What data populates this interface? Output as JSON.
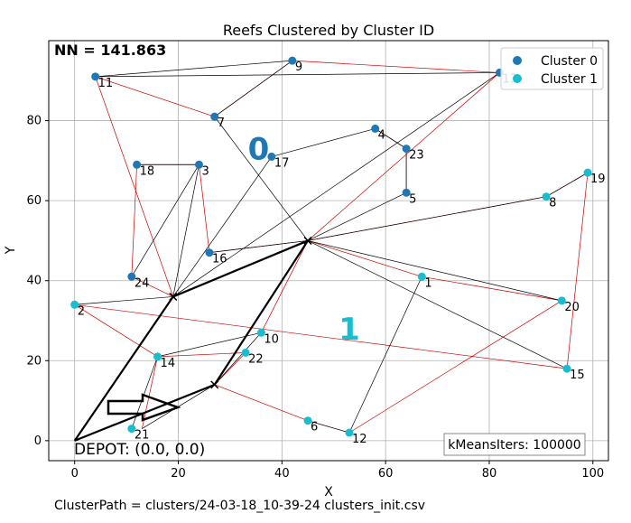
{
  "chart_data": {
    "type": "scatter",
    "title": "Reefs Clustered by Cluster ID",
    "xlabel": "X",
    "ylabel": "Y",
    "xlim": [
      -5,
      103
    ],
    "ylim": [
      -5,
      100
    ],
    "xticks": [
      0,
      20,
      40,
      60,
      80,
      100
    ],
    "yticks": [
      0,
      20,
      40,
      60,
      80
    ],
    "grid": true,
    "legend_position": "top-right",
    "series": [
      {
        "name": "Cluster 0",
        "color": "#1f77b4",
        "points": [
          {
            "id": "3",
            "x": 24,
            "y": 69
          },
          {
            "id": "4",
            "x": 58,
            "y": 78
          },
          {
            "id": "5",
            "x": 64,
            "y": 62
          },
          {
            "id": "7",
            "x": 27,
            "y": 81
          },
          {
            "id": "9",
            "x": 42,
            "y": 95
          },
          {
            "id": "11",
            "x": 4,
            "y": 91
          },
          {
            "id": "13",
            "x": 82,
            "y": 92
          },
          {
            "id": "16",
            "x": 26,
            "y": 47
          },
          {
            "id": "17",
            "x": 38,
            "y": 71
          },
          {
            "id": "18",
            "x": 12,
            "y": 69
          },
          {
            "id": "23",
            "x": 64,
            "y": 73
          },
          {
            "id": "24",
            "x": 11,
            "y": 41
          }
        ]
      },
      {
        "name": "Cluster 1",
        "color": "#17becf",
        "points": [
          {
            "id": "1",
            "x": 67,
            "y": 41
          },
          {
            "id": "2",
            "x": 0,
            "y": 34
          },
          {
            "id": "6",
            "x": 45,
            "y": 5
          },
          {
            "id": "8",
            "x": 91,
            "y": 61
          },
          {
            "id": "10",
            "x": 36,
            "y": 27
          },
          {
            "id": "12",
            "x": 53,
            "y": 2
          },
          {
            "id": "14",
            "x": 16,
            "y": 21
          },
          {
            "id": "15",
            "x": 95,
            "y": 18
          },
          {
            "id": "19",
            "x": 99,
            "y": 67
          },
          {
            "id": "20",
            "x": 94,
            "y": 35
          },
          {
            "id": "21",
            "x": 11,
            "y": 3
          },
          {
            "id": "22",
            "x": 33,
            "y": 22
          }
        ]
      }
    ],
    "centroids": [
      {
        "label": "0",
        "x": 35.5,
        "y": 73,
        "color": "#1f77b4"
      },
      {
        "label": "1",
        "x": 53,
        "y": 28,
        "color": "#17becf"
      }
    ],
    "depot_route": [
      [
        0,
        0
      ],
      [
        19,
        36
      ],
      [
        45,
        50
      ],
      [
        27,
        14
      ],
      [
        0,
        0
      ]
    ],
    "depot_marks": [
      [
        19,
        36
      ],
      [
        45,
        50
      ],
      [
        27,
        14
      ]
    ],
    "black_edges": [
      [
        [
          4,
          91
        ],
        [
          42,
          95
        ]
      ],
      [
        [
          4,
          91
        ],
        [
          82,
          92
        ]
      ],
      [
        [
          42,
          95
        ],
        [
          27,
          81
        ]
      ],
      [
        [
          27,
          81
        ],
        [
          45,
          50
        ]
      ],
      [
        [
          82,
          92
        ],
        [
          19,
          36
        ]
      ],
      [
        [
          45,
          50
        ],
        [
          64,
          62
        ]
      ],
      [
        [
          64,
          62
        ],
        [
          64,
          73
        ]
      ],
      [
        [
          64,
          73
        ],
        [
          58,
          78
        ]
      ],
      [
        [
          58,
          78
        ],
        [
          38,
          71
        ]
      ],
      [
        [
          38,
          71
        ],
        [
          19,
          36
        ]
      ],
      [
        [
          19,
          36
        ],
        [
          24,
          69
        ]
      ],
      [
        [
          24,
          69
        ],
        [
          11,
          41
        ]
      ],
      [
        [
          12,
          69
        ],
        [
          24,
          69
        ]
      ],
      [
        [
          45,
          50
        ],
        [
          26,
          47
        ]
      ],
      [
        [
          19,
          36
        ],
        [
          0,
          34
        ]
      ],
      [
        [
          45,
          50
        ],
        [
          91,
          61
        ]
      ],
      [
        [
          91,
          61
        ],
        [
          99,
          67
        ]
      ],
      [
        [
          45,
          50
        ],
        [
          94,
          35
        ]
      ],
      [
        [
          45,
          50
        ],
        [
          95,
          18
        ]
      ],
      [
        [
          67,
          41
        ],
        [
          53,
          2
        ]
      ],
      [
        [
          53,
          2
        ],
        [
          45,
          5
        ]
      ],
      [
        [
          27,
          14
        ],
        [
          36,
          27
        ]
      ],
      [
        [
          36,
          27
        ],
        [
          16,
          21
        ]
      ],
      [
        [
          16,
          21
        ],
        [
          11,
          3
        ]
      ],
      [
        [
          27,
          14
        ],
        [
          13,
          3
        ]
      ]
    ],
    "red_edges": [
      [
        [
          4,
          91
        ],
        [
          19,
          36
        ]
      ],
      [
        [
          4,
          91
        ],
        [
          27,
          81
        ]
      ],
      [
        [
          27,
          81
        ],
        [
          42,
          95
        ]
      ],
      [
        [
          42,
          95
        ],
        [
          82,
          92
        ]
      ],
      [
        [
          82,
          92
        ],
        [
          45,
          50
        ]
      ],
      [
        [
          64,
          73
        ],
        [
          58,
          78
        ]
      ],
      [
        [
          64,
          73
        ],
        [
          64,
          62
        ]
      ],
      [
        [
          12,
          69
        ],
        [
          24,
          69
        ]
      ],
      [
        [
          12,
          69
        ],
        [
          11,
          41
        ]
      ],
      [
        [
          11,
          41
        ],
        [
          19,
          36
        ]
      ],
      [
        [
          24,
          69
        ],
        [
          26,
          47
        ]
      ],
      [
        [
          26,
          47
        ],
        [
          45,
          50
        ]
      ],
      [
        [
          45,
          50
        ],
        [
          91,
          61
        ]
      ],
      [
        [
          99,
          67
        ],
        [
          91,
          61
        ]
      ],
      [
        [
          99,
          67
        ],
        [
          95,
          18
        ]
      ],
      [
        [
          45,
          50
        ],
        [
          67,
          41
        ]
      ],
      [
        [
          67,
          41
        ],
        [
          94,
          35
        ]
      ],
      [
        [
          94,
          35
        ],
        [
          53,
          2
        ]
      ],
      [
        [
          0,
          34
        ],
        [
          95,
          18
        ]
      ],
      [
        [
          0,
          34
        ],
        [
          16,
          21
        ]
      ],
      [
        [
          16,
          21
        ],
        [
          33,
          22
        ]
      ],
      [
        [
          33,
          22
        ],
        [
          27,
          14
        ]
      ],
      [
        [
          27,
          14
        ],
        [
          45,
          5
        ]
      ],
      [
        [
          45,
          5
        ],
        [
          53,
          2
        ]
      ],
      [
        [
          45,
          50
        ],
        [
          36,
          27
        ]
      ],
      [
        [
          16,
          21
        ],
        [
          13,
          3
        ]
      ]
    ]
  },
  "labels": {
    "nn": "NN = 141.863",
    "depot": "DEPOT: (0.0, 0.0)",
    "kmeans": "kMeansIters: 100000",
    "cluster_path": "ClusterPath = clusters/24-03-18_10-39-24 clusters_init.csv"
  }
}
